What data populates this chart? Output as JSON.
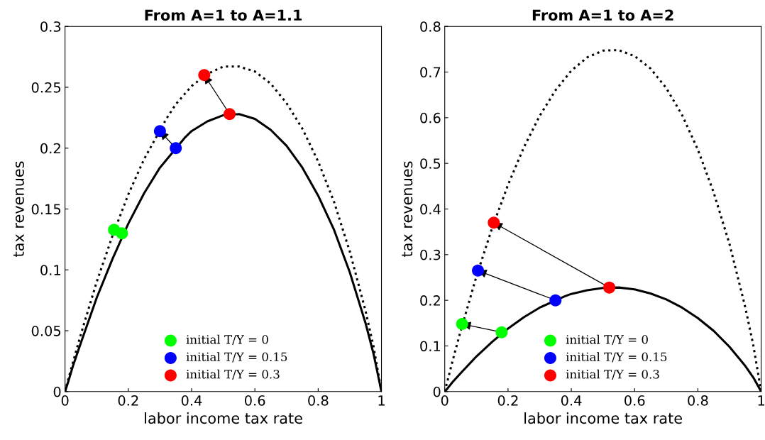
{
  "chart_data": [
    {
      "type": "line",
      "title": "From A=1 to A=1.1",
      "xlabel": "labor income tax rate",
      "ylabel": "tax revenues",
      "xlim": [
        0,
        1
      ],
      "xticks": [
        0,
        0.2,
        0.4,
        0.6,
        0.8,
        1
      ],
      "ylim": [
        0,
        0.3
      ],
      "yticks": [
        0,
        0.05,
        0.1,
        0.15,
        0.2,
        0.25,
        0.3
      ],
      "grid": false,
      "legend": "bottom",
      "series": [
        {
          "color": "#000000",
          "line_style": "solid",
          "x": [
            0,
            0.01,
            0.025,
            0.05,
            0.1,
            0.15,
            0.2,
            0.25,
            0.3,
            0.38,
            0.4,
            0.45,
            0.5,
            0.55,
            0.6,
            0.65,
            0.7,
            0.75,
            0.8,
            0.85,
            0.9,
            0.95,
            0.975,
            1
          ],
          "values": [
            0,
            0.008,
            0.021,
            0.04,
            0.077,
            0.109,
            0.138,
            0.163,
            0.184,
            0.209,
            0.214,
            0.222,
            0.227,
            0.228,
            0.224,
            0.215,
            0.202,
            0.184,
            0.161,
            0.133,
            0.098,
            0.056,
            0.031,
            0
          ]
        },
        {
          "color": "#000000",
          "line_style": "dotted",
          "x": [
            0,
            0.01,
            0.025,
            0.05,
            0.1,
            0.15,
            0.2,
            0.25,
            0.32,
            0.35,
            0.4,
            0.45,
            0.5,
            0.55,
            0.6,
            0.65,
            0.7,
            0.75,
            0.8,
            0.85,
            0.9,
            0.95,
            0.975,
            1
          ],
          "values": [
            0,
            0.01,
            0.024,
            0.047,
            0.09,
            0.128,
            0.162,
            0.191,
            0.224,
            0.236,
            0.251,
            0.261,
            0.267,
            0.267,
            0.263,
            0.253,
            0.237,
            0.216,
            0.189,
            0.156,
            0.115,
            0.066,
            0.037,
            0
          ]
        },
        {
          "type": "scatter",
          "name": "initial T/Y = 0",
          "color": "#00ff00",
          "marker": "circle",
          "x": [
            0.18
          ],
          "values": [
            0.13
          ]
        },
        {
          "type": "scatter",
          "name": "initial T/Y = 0.15",
          "color": "#0000ff",
          "marker": "circle",
          "x": [
            0.35
          ],
          "values": [
            0.2
          ]
        },
        {
          "type": "scatter",
          "name": "initial T/Y = 0.3",
          "color": "#ff0000",
          "marker": "circle",
          "x": [
            0.52
          ],
          "values": [
            0.228
          ]
        },
        {
          "type": "scatter",
          "color": "#00ff00",
          "marker": "circle",
          "x": [
            0.155
          ],
          "values": [
            0.133
          ]
        },
        {
          "type": "scatter",
          "color": "#0000ff",
          "marker": "circle",
          "x": [
            0.3
          ],
          "values": [
            0.214
          ]
        },
        {
          "type": "scatter",
          "color": "#ff0000",
          "marker": "circle",
          "x": [
            0.44
          ],
          "values": [
            0.26
          ]
        }
      ]
    },
    {
      "type": "line",
      "title": "From A=1 to A=2",
      "xlabel": "labor income tax rate",
      "ylabel": "tax revenues",
      "xlim": [
        0,
        1
      ],
      "xticks": [
        0,
        0.2,
        0.4,
        0.6,
        0.8,
        1
      ],
      "ylim": [
        0,
        0.8
      ],
      "yticks": [
        0,
        0.1,
        0.2,
        0.3,
        0.4,
        0.5,
        0.6,
        0.7,
        0.8
      ],
      "grid": false,
      "legend": "bottom",
      "series": [
        {
          "color": "#000000",
          "line_style": "solid",
          "x": [
            0,
            0.01,
            0.025,
            0.05,
            0.1,
            0.15,
            0.2,
            0.25,
            0.3,
            0.38,
            0.4,
            0.45,
            0.5,
            0.55,
            0.6,
            0.65,
            0.7,
            0.75,
            0.8,
            0.85,
            0.9,
            0.95,
            0.975,
            1
          ],
          "values": [
            0,
            0.008,
            0.021,
            0.04,
            0.077,
            0.109,
            0.138,
            0.163,
            0.184,
            0.209,
            0.214,
            0.222,
            0.227,
            0.228,
            0.224,
            0.215,
            0.202,
            0.184,
            0.161,
            0.133,
            0.098,
            0.056,
            0.031,
            0
          ]
        },
        {
          "color": "#000000",
          "line_style": "dotted",
          "x": [
            0,
            0.01,
            0.025,
            0.05,
            0.1,
            0.15,
            0.2,
            0.25,
            0.3,
            0.35,
            0.4,
            0.45,
            0.5,
            0.55,
            0.6,
            0.65,
            0.7,
            0.75,
            0.8,
            0.85,
            0.9,
            0.95,
            0.975,
            1
          ],
          "values": [
            0,
            0.027,
            0.068,
            0.132,
            0.252,
            0.359,
            0.453,
            0.535,
            0.604,
            0.66,
            0.703,
            0.732,
            0.747,
            0.748,
            0.735,
            0.708,
            0.665,
            0.606,
            0.53,
            0.436,
            0.323,
            0.184,
            0.102,
            0
          ]
        },
        {
          "type": "scatter",
          "name": "initial T/Y = 0",
          "color": "#00ff00",
          "marker": "circle",
          "x": [
            0.18
          ],
          "values": [
            0.13
          ]
        },
        {
          "type": "scatter",
          "name": "initial T/Y = 0.15",
          "color": "#0000ff",
          "marker": "circle",
          "x": [
            0.35
          ],
          "values": [
            0.2
          ]
        },
        {
          "type": "scatter",
          "name": "initial T/Y = 0.3",
          "color": "#ff0000",
          "marker": "circle",
          "x": [
            0.52
          ],
          "values": [
            0.228
          ]
        },
        {
          "type": "scatter",
          "color": "#00ff00",
          "marker": "circle",
          "x": [
            0.055
          ],
          "values": [
            0.148
          ]
        },
        {
          "type": "scatter",
          "color": "#0000ff",
          "marker": "circle",
          "x": [
            0.105
          ],
          "values": [
            0.265
          ]
        },
        {
          "type": "scatter",
          "color": "#ff0000",
          "marker": "circle",
          "x": [
            0.155
          ],
          "values": [
            0.37
          ]
        }
      ]
    }
  ]
}
